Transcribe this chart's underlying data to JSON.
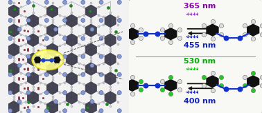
{
  "background_color": "#f2f2f2",
  "box_bg": "#f5f5f5",
  "box_border": "#555555",
  "title_top": "365 nm",
  "title_top_color": "#8800aa",
  "title_bottom_left": "455 nm",
  "title_bottom_left_color": "#1122bb",
  "title_bottom": "530 nm",
  "title_bottom_color": "#00aa00",
  "title_bottom_right": "400 nm",
  "title_bottom_right_color": "#1122bb",
  "arrow_color": "#111111",
  "uv_color_top": "#9933cc",
  "uv_color_bottom_top": "#00cc00",
  "uv_color_bottom_bottom": "#1122cc",
  "uv_color_top2": "#1122cc",
  "mol_black": "#111111",
  "mol_blue": "#1133cc",
  "mol_green": "#22cc22",
  "mol_white": "#dddddd",
  "mol_white_edge": "#888888",
  "mof_node_color": "#8899cc",
  "mof_linker_color": "#aaaacc",
  "mof_carbon_color": "#333344",
  "mof_oxygen_color": "#993333",
  "mof_cl_color": "#228822",
  "figsize": [
    3.78,
    1.64
  ],
  "dpi": 100
}
